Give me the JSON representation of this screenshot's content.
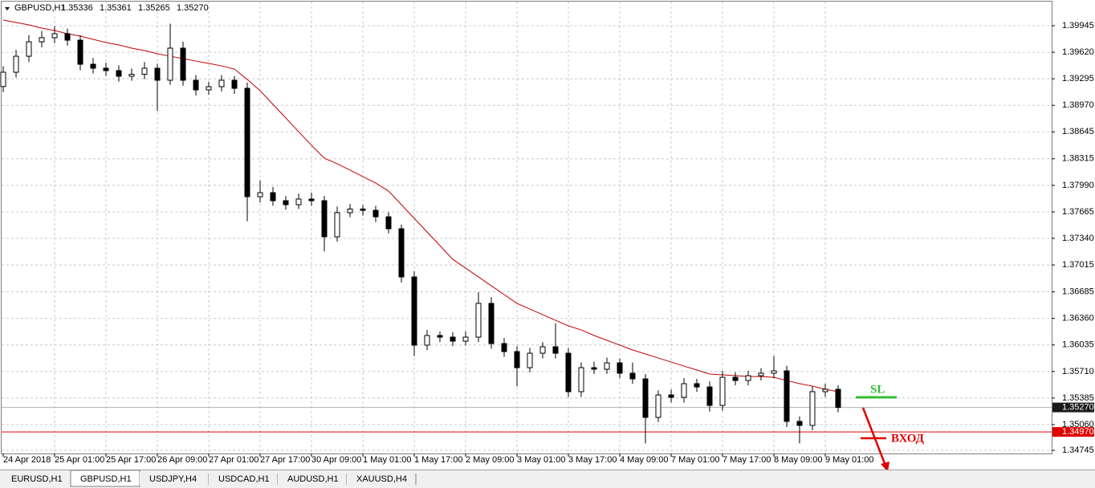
{
  "chart_data": {
    "type": "candlestick",
    "title": "GBPUSD,H1",
    "ohlc_header": [
      "1.35336",
      "1.35361",
      "1.35265",
      "1.35270"
    ],
    "categories": [
      "24 Apr 2018",
      null,
      null,
      null,
      "25 Apr 01:00",
      null,
      null,
      null,
      "25 Apr 17:00",
      null,
      null,
      null,
      "26 Apr 09:00",
      null,
      null,
      null,
      "27 Apr 01:00",
      null,
      null,
      null,
      "27 Apr 17:00",
      null,
      null,
      null,
      "30 Apr 09:00",
      null,
      null,
      null,
      "1 May 01:00",
      null,
      null,
      null,
      "1 May 17:00",
      null,
      null,
      null,
      "2 May 09:00",
      null,
      null,
      null,
      "3 May 01:00",
      null,
      null,
      null,
      "3 May 17:00",
      null,
      null,
      null,
      "4 May 09:00",
      null,
      null,
      null,
      "7 May 01:00",
      null,
      null,
      null,
      "7 May 17:00",
      null,
      null,
      null,
      "8 May 09:00",
      null,
      null,
      null,
      "9 May 01:00",
      null
    ],
    "open": [
      1.392,
      1.39375,
      1.39571,
      1.39748,
      1.39798,
      1.39847,
      1.39768,
      1.39473,
      1.39424,
      1.39395,
      1.39326,
      1.3935,
      1.39424,
      1.39277,
      1.3967,
      1.39277,
      1.39159,
      1.39198,
      1.39277,
      1.39178,
      1.37851,
      1.379,
      1.37802,
      1.37753,
      1.37822,
      1.37802,
      1.3736,
      1.37655,
      1.377,
      1.37684,
      1.37605,
      1.37458,
      1.36868,
      1.36033,
      1.36151,
      1.36131,
      1.36082,
      1.36131,
      1.36544,
      1.36052,
      1.35954,
      1.35757,
      1.35934,
      1.36013,
      1.35934,
      1.35463,
      1.35757,
      1.35738,
      1.35816,
      1.35689,
      1.3562,
      1.35148,
      1.35423,
      1.35394,
      1.35561,
      1.35521,
      1.35295,
      1.35639,
      1.356,
      1.35659,
      1.35689,
      1.35718,
      1.35099,
      1.3505,
      1.35463,
      1.35492
    ],
    "high": [
      1.3945,
      1.3965,
      1.3983,
      1.3988,
      1.3994,
      1.3991,
      1.3983,
      1.3955,
      1.3949,
      1.3946,
      1.3942,
      1.395,
      1.3948,
      1.3997,
      1.3975,
      1.3934,
      1.3926,
      1.3934,
      1.3933,
      1.3925,
      1.3805,
      1.3797,
      1.3786,
      1.3789,
      1.379,
      1.3786,
      1.3773,
      1.3776,
      1.3775,
      1.3774,
      1.3766,
      1.3751,
      1.3694,
      1.3622,
      1.362,
      1.3619,
      1.362,
      1.3668,
      1.3662,
      1.3612,
      1.3602,
      1.36,
      1.3607,
      1.363,
      1.36,
      1.3582,
      1.3583,
      1.3588,
      1.3587,
      1.3582,
      1.3568,
      1.3548,
      1.3549,
      1.3563,
      1.3562,
      1.3559,
      1.3572,
      1.357,
      1.3572,
      1.3575,
      1.359,
      1.3578,
      1.3516,
      1.3553,
      1.3556,
      1.3554
    ],
    "low": [
      1.3913,
      1.3931,
      1.395,
      1.3968,
      1.3973,
      1.397,
      1.394,
      1.3936,
      1.3933,
      1.3926,
      1.3927,
      1.3929,
      1.389,
      1.3922,
      1.3921,
      1.3909,
      1.391,
      1.3914,
      1.3911,
      1.3755,
      1.3778,
      1.3774,
      1.3769,
      1.377,
      1.3774,
      1.3718,
      1.373,
      1.376,
      1.3762,
      1.3754,
      1.374,
      1.368,
      1.359,
      1.3597,
      1.3607,
      1.3602,
      1.3603,
      1.3607,
      1.3599,
      1.3589,
      1.3553,
      1.357,
      1.3587,
      1.3587,
      1.354,
      1.354,
      1.3568,
      1.3568,
      1.3563,
      1.3556,
      1.3483,
      1.3509,
      1.3533,
      1.3533,
      1.3546,
      1.3522,
      1.3523,
      1.3554,
      1.3554,
      1.356,
      1.3563,
      1.3503,
      1.3483,
      1.3499,
      1.354,
      1.3521
    ],
    "close": [
      1.39375,
      1.39571,
      1.39748,
      1.39798,
      1.39847,
      1.39768,
      1.39473,
      1.39424,
      1.39395,
      1.39326,
      1.3935,
      1.39424,
      1.39277,
      1.3967,
      1.39277,
      1.39159,
      1.39198,
      1.39277,
      1.39178,
      1.37851,
      1.379,
      1.37802,
      1.37753,
      1.37822,
      1.37802,
      1.3736,
      1.37655,
      1.377,
      1.37684,
      1.37605,
      1.37458,
      1.36868,
      1.36033,
      1.36151,
      1.36131,
      1.36082,
      1.36131,
      1.36544,
      1.36052,
      1.35954,
      1.35757,
      1.35934,
      1.36013,
      1.35934,
      1.35463,
      1.35757,
      1.35738,
      1.35816,
      1.35689,
      1.3562,
      1.35148,
      1.35423,
      1.35394,
      1.35561,
      1.35521,
      1.35295,
      1.35639,
      1.356,
      1.35659,
      1.35689,
      1.35718,
      1.35099,
      1.3505,
      1.35463,
      1.35492,
      1.3527
    ],
    "ma": {
      "color": "#c00000",
      "values": [
        1.40014,
        1.39984,
        1.39955,
        1.39916,
        1.39886,
        1.39847,
        1.39817,
        1.39778,
        1.39739,
        1.39709,
        1.3967,
        1.3964,
        1.39601,
        1.39571,
        1.39542,
        1.39512,
        1.39483,
        1.39453,
        1.39414,
        1.39286,
        1.39149,
        1.38982,
        1.38815,
        1.38647,
        1.3848,
        1.38323,
        1.38254,
        1.38176,
        1.38097,
        1.38018,
        1.3792,
        1.37753,
        1.37586,
        1.37419,
        1.37252,
        1.37084,
        1.36976,
        1.36868,
        1.3676,
        1.36652,
        1.36544,
        1.36475,
        1.36406,
        1.36337,
        1.36269,
        1.36219,
        1.36151,
        1.36092,
        1.36033,
        1.35974,
        1.35925,
        1.35875,
        1.35826,
        1.35777,
        1.35728,
        1.35679,
        1.35669,
        1.35659,
        1.35649,
        1.35649,
        1.35639,
        1.356,
        1.35561,
        1.35531,
        1.35492,
        1.35463
      ]
    },
    "ylim": [
      1.34706,
      1.4024
    ],
    "yticks": [
      {
        "value": 1.39945,
        "label": "1.39945"
      },
      {
        "value": 1.3962,
        "label": "1.39620"
      },
      {
        "value": 1.39295,
        "label": "1.39295"
      },
      {
        "value": 1.3897,
        "label": "1.38970"
      },
      {
        "value": 1.38645,
        "label": "1.38645"
      },
      {
        "value": 1.38315,
        "label": "1.38315"
      },
      {
        "value": 1.3799,
        "label": "1.37990"
      },
      {
        "value": 1.37665,
        "label": "1.37665"
      },
      {
        "value": 1.3734,
        "label": "1.37340"
      },
      {
        "value": 1.37015,
        "label": "1.37015"
      },
      {
        "value": 1.36685,
        "label": "1.36685"
      },
      {
        "value": 1.3636,
        "label": "1.36360"
      },
      {
        "value": 1.36035,
        "label": "1.36035"
      },
      {
        "value": 1.3571,
        "label": "1.35710"
      },
      {
        "value": 1.35385,
        "label": "1.35385"
      },
      {
        "value": 1.3506,
        "label": "1.35060"
      },
      {
        "value": 1.34745,
        "label": "1.34745"
      }
    ],
    "price_lines": [
      {
        "value": 1.3527,
        "label": "1.35270",
        "color": "#b0b0b0",
        "tag": "#1a1a1a"
      },
      {
        "value": 1.3497,
        "label": "1.34970",
        "color": "#e00000",
        "tag": "#e00000"
      }
    ],
    "grid": true,
    "up_color": "#ffffff",
    "down_color": "#000000"
  },
  "annotations": {
    "sl": "SL",
    "entry": "ВХОД"
  },
  "tabs": [
    "EURUSD,H1",
    "GBPUSD,H1",
    "USDJPY,H4",
    "USDCAD,H1",
    "AUDUSD,H1",
    "XAUUSD,H4"
  ],
  "active_tab": 1
}
